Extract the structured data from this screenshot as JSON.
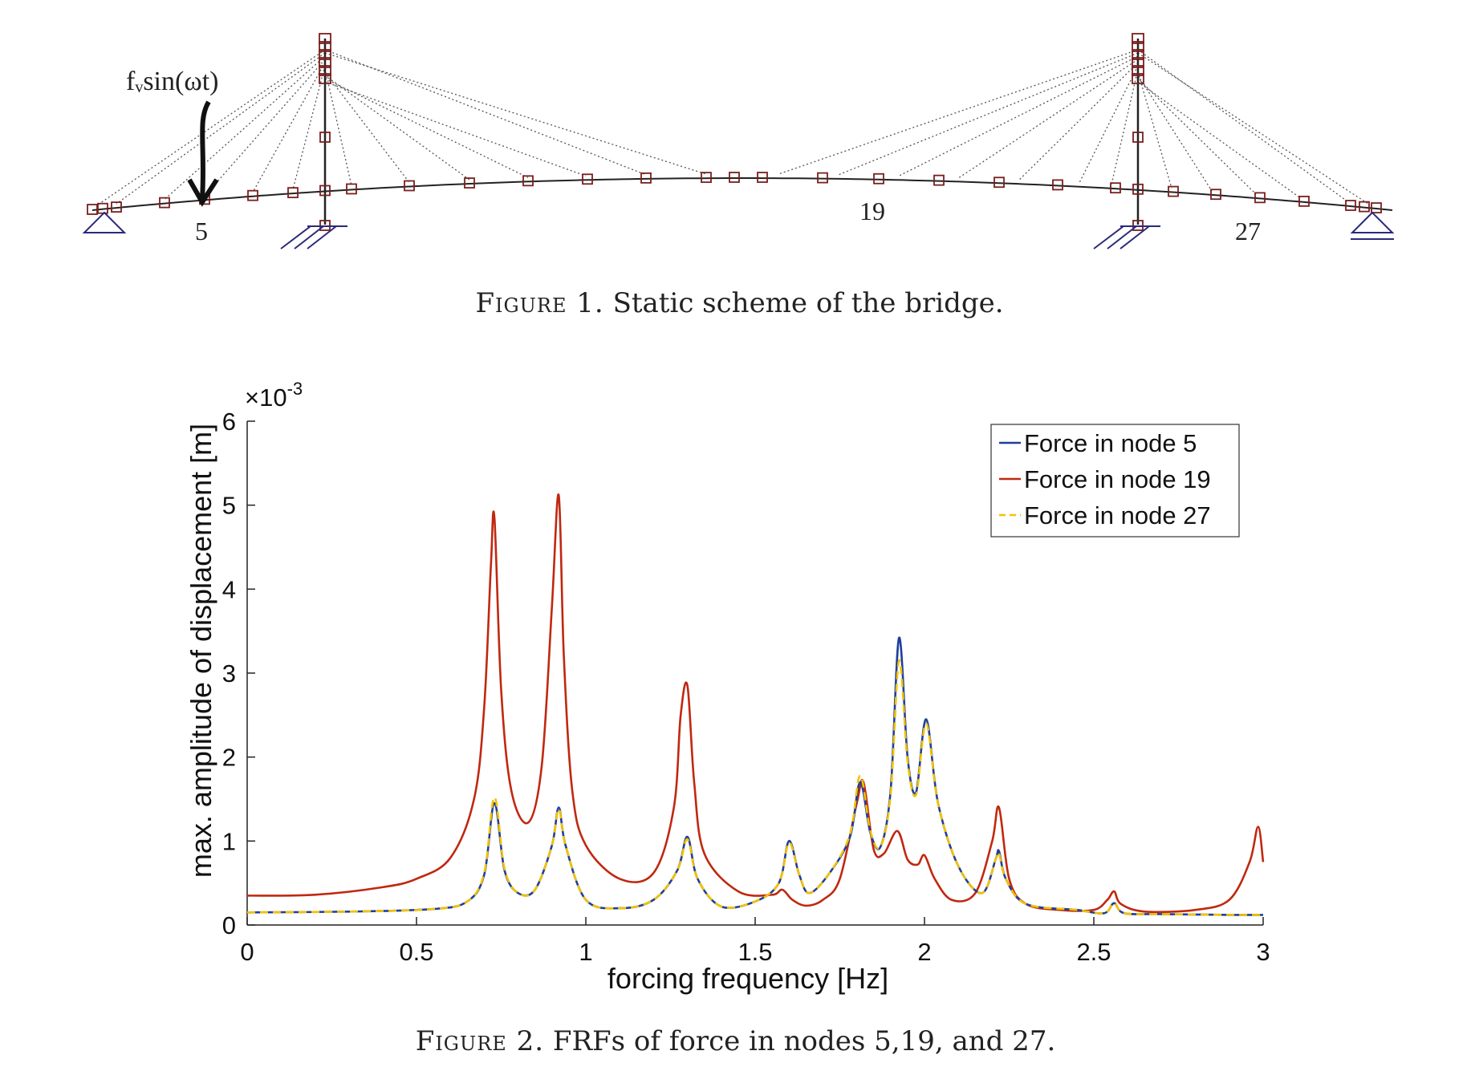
{
  "figure1": {
    "caption_label": "Figure 1.",
    "caption_text": "Static scheme of the bridge.",
    "force_label": "fᵥsin(ωt)",
    "node_labels": [
      "5",
      "19",
      "27"
    ]
  },
  "figure2": {
    "caption_label": "Figure 2.",
    "caption_text": "FRFs of force in nodes 5,19, and 27."
  },
  "chart_data": {
    "type": "line",
    "xlabel": "forcing frequency [Hz]",
    "ylabel": "max. amplitude of displacement [m]",
    "y_multiplier": "×10-3",
    "xlim": [
      0,
      3
    ],
    "ylim": [
      0,
      6
    ],
    "xticks": [
      "0",
      "0.5",
      "1",
      "1.5",
      "2",
      "2.5",
      "3"
    ],
    "yticks": [
      "0",
      "1",
      "2",
      "3",
      "4",
      "5",
      "6"
    ],
    "legend_position": "top-right",
    "series": [
      {
        "name": "Force in node 5",
        "color": "#1f3f9f",
        "style": "solid",
        "x": [
          0,
          0.3,
          0.55,
          0.65,
          0.7,
          0.73,
          0.76,
          0.8,
          0.85,
          0.9,
          0.92,
          0.94,
          1.0,
          1.1,
          1.2,
          1.27,
          1.3,
          1.33,
          1.4,
          1.5,
          1.57,
          1.6,
          1.63,
          1.66,
          1.72,
          1.78,
          1.81,
          1.84,
          1.87,
          1.9,
          1.925,
          1.95,
          1.975,
          2.005,
          2.04,
          2.1,
          2.17,
          2.21,
          2.22,
          2.24,
          2.3,
          2.45,
          2.53,
          2.56,
          2.59,
          2.7,
          2.9,
          3.0
        ],
        "y": [
          0.15,
          0.16,
          0.19,
          0.28,
          0.6,
          1.45,
          0.65,
          0.38,
          0.42,
          0.95,
          1.4,
          0.95,
          0.3,
          0.2,
          0.3,
          0.65,
          1.05,
          0.55,
          0.22,
          0.28,
          0.5,
          1.0,
          0.6,
          0.38,
          0.62,
          1.05,
          1.7,
          1.1,
          0.93,
          1.6,
          3.42,
          2.0,
          1.58,
          2.45,
          1.45,
          0.7,
          0.38,
          0.78,
          0.88,
          0.55,
          0.25,
          0.18,
          0.14,
          0.26,
          0.14,
          0.13,
          0.12,
          0.12
        ]
      },
      {
        "name": "Force in node 19",
        "color": "#c02810",
        "style": "solid",
        "x": [
          0,
          0.2,
          0.4,
          0.5,
          0.6,
          0.67,
          0.7,
          0.72,
          0.73,
          0.75,
          0.78,
          0.83,
          0.87,
          0.9,
          0.92,
          0.935,
          0.96,
          1.0,
          1.1,
          1.2,
          1.26,
          1.28,
          1.3,
          1.32,
          1.35,
          1.45,
          1.55,
          1.58,
          1.61,
          1.65,
          1.7,
          1.75,
          1.8,
          1.82,
          1.85,
          1.88,
          1.92,
          1.95,
          1.98,
          2.0,
          2.03,
          2.08,
          2.15,
          2.2,
          2.22,
          2.25,
          2.3,
          2.4,
          2.5,
          2.54,
          2.56,
          2.58,
          2.65,
          2.8,
          2.9,
          2.96,
          2.985,
          3.0
        ],
        "y": [
          0.35,
          0.36,
          0.45,
          0.55,
          0.8,
          1.5,
          2.6,
          4.3,
          4.85,
          2.8,
          1.6,
          1.22,
          1.9,
          3.8,
          5.12,
          3.2,
          1.6,
          0.95,
          0.55,
          0.62,
          1.4,
          2.5,
          2.85,
          1.7,
          0.85,
          0.4,
          0.36,
          0.42,
          0.3,
          0.23,
          0.3,
          0.55,
          1.45,
          1.7,
          0.9,
          0.85,
          1.12,
          0.78,
          0.72,
          0.83,
          0.55,
          0.3,
          0.38,
          1.0,
          1.4,
          0.55,
          0.25,
          0.18,
          0.18,
          0.3,
          0.4,
          0.25,
          0.16,
          0.18,
          0.3,
          0.75,
          1.17,
          0.75
        ]
      },
      {
        "name": "Force in node 27",
        "color": "#f2c200",
        "style": "dashed",
        "x": [
          0,
          0.3,
          0.55,
          0.65,
          0.7,
          0.73,
          0.76,
          0.8,
          0.85,
          0.9,
          0.92,
          0.94,
          1.0,
          1.1,
          1.2,
          1.27,
          1.3,
          1.33,
          1.4,
          1.5,
          1.57,
          1.6,
          1.63,
          1.66,
          1.72,
          1.78,
          1.81,
          1.84,
          1.87,
          1.9,
          1.925,
          1.95,
          1.975,
          2.005,
          2.04,
          2.1,
          2.17,
          2.21,
          2.22,
          2.24,
          2.3,
          2.45,
          2.53,
          2.56,
          2.59,
          2.7,
          2.9,
          3.0
        ],
        "y": [
          0.15,
          0.16,
          0.19,
          0.28,
          0.62,
          1.52,
          0.67,
          0.38,
          0.42,
          0.95,
          1.38,
          0.95,
          0.3,
          0.2,
          0.3,
          0.65,
          1.02,
          0.55,
          0.22,
          0.28,
          0.5,
          0.98,
          0.6,
          0.38,
          0.62,
          1.08,
          1.78,
          1.12,
          0.93,
          1.55,
          3.15,
          1.95,
          1.55,
          2.4,
          1.45,
          0.7,
          0.38,
          0.78,
          0.85,
          0.55,
          0.25,
          0.18,
          0.14,
          0.26,
          0.14,
          0.13,
          0.12,
          0.12
        ]
      }
    ]
  }
}
